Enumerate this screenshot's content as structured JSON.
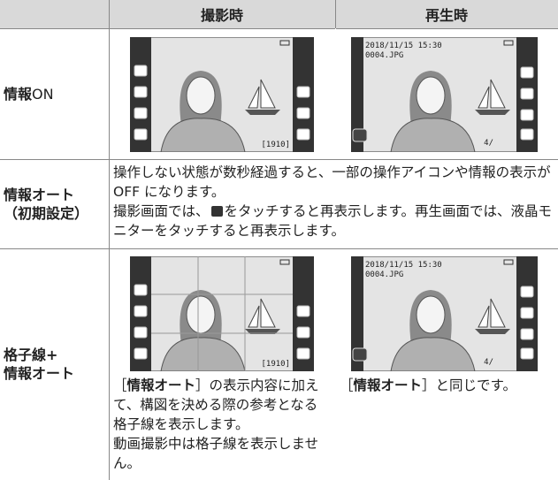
{
  "table": {
    "header": [
      "撮影時",
      "再生時"
    ],
    "rows": [
      {
        "label": [
          "情報",
          "ON"
        ],
        "shoot_screen": {
          "counter": "[1910]"
        },
        "play_screen": {
          "date": "2018/11/15 15:30",
          "file": "0004.JPG",
          "frame": "4/"
        }
      },
      {
        "label": [
          "情報オート",
          "（初期設定）"
        ],
        "text": [
          "操作しない状態が数秒経過すると、一部の操作アイコンや情報の表示がOFF になります。",
          "撮影画面では、",
          "をタッチすると再表示します。再生画面では、液晶モニターをタッチすると再表示します。"
        ]
      },
      {
        "label": [
          "格子線+",
          "情報オート"
        ],
        "shoot_screen": {
          "counter": "[1910]"
        },
        "play_screen": {
          "date": "2018/11/15 15:30",
          "file": "0004.JPG",
          "frame": "4/"
        },
        "shoot_note": [
          "［",
          "情報オート",
          "］の表示内容に加えて、構図を決める際の参考となる格子線を表示します。",
          "動画撮影中は格子線を表示しません。"
        ],
        "play_note": [
          "［",
          "情報オート",
          "］と同じです。"
        ]
      }
    ]
  }
}
